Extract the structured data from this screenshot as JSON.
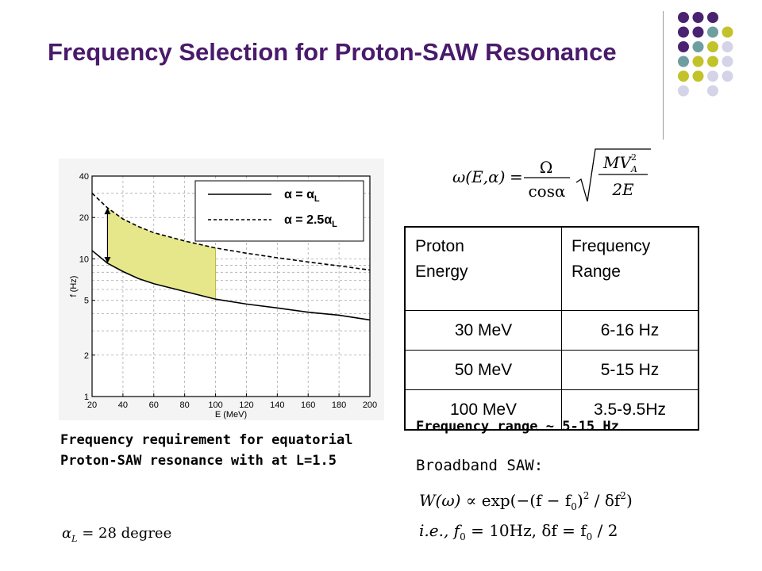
{
  "title": "Frequency Selection for Proton-SAW Resonance",
  "decoration": {
    "dot_colors": [
      "#4a2370",
      "#6f9ea0",
      "#c2c22a",
      "#d5d3e8"
    ],
    "dot_pattern": [
      [
        0,
        0,
        0,
        null
      ],
      [
        0,
        0,
        1,
        2
      ],
      [
        0,
        1,
        2,
        3
      ],
      [
        1,
        2,
        2,
        3
      ],
      [
        2,
        2,
        3,
        3
      ],
      [
        3,
        null,
        3,
        null
      ]
    ]
  },
  "chart_data": {
    "type": "line",
    "xlabel": "E (MeV)",
    "ylabel": "f (Hz)",
    "x_ticks": [
      20,
      40,
      60,
      80,
      100,
      120,
      140,
      160,
      180,
      200
    ],
    "y_ticks": [
      1,
      2,
      5,
      10,
      20,
      40
    ],
    "y_tick_labels": [
      "1",
      "2",
      "5",
      "10",
      "20",
      "40"
    ],
    "xlim": [
      20,
      200
    ],
    "ylim": [
      1,
      40
    ],
    "y_scale": "log",
    "grid": true,
    "legend_position": "top-right",
    "series": [
      {
        "name": "α = α",
        "subscript": "L",
        "style": "solid",
        "color": "#000000",
        "x": [
          20,
          30,
          40,
          50,
          60,
          80,
          100,
          120,
          140,
          160,
          180,
          200
        ],
        "y": [
          11.5,
          9.3,
          8.1,
          7.2,
          6.6,
          5.8,
          5.1,
          4.7,
          4.4,
          4.1,
          3.9,
          3.6
        ]
      },
      {
        "name": "α = 2.5α",
        "subscript": "L",
        "style": "dashed",
        "color": "#000000",
        "x": [
          20,
          30,
          40,
          50,
          60,
          80,
          100,
          120,
          140,
          160,
          180,
          200
        ],
        "y": [
          30,
          23.5,
          19.5,
          17.2,
          15.5,
          13.5,
          12,
          11,
          10.2,
          9.5,
          8.9,
          8.3
        ]
      }
    ],
    "shaded_band": {
      "x_range": [
        30,
        100
      ],
      "color": "#e6e68a"
    },
    "arrow": {
      "x": 30,
      "y_from": 9.3,
      "y_to": 23.5
    }
  },
  "formula": {
    "lhs": "ω(E,α)",
    "numerator": "Ω",
    "denominator": "cosα",
    "root_numerator": "MV",
    "root_subscript": "A",
    "root_superscript": "2",
    "root_denominator": "2E"
  },
  "table": {
    "headers": [
      [
        "Proton",
        "Energy"
      ],
      [
        "Frequency",
        "Range"
      ]
    ],
    "rows": [
      [
        "30 MeV",
        "6-16 Hz"
      ],
      [
        "50 MeV",
        "5-15 Hz"
      ],
      [
        "100 MeV",
        "3.5-9.5Hz"
      ]
    ]
  },
  "caption": "Frequency requirement for equatorial Proton-SAW resonance with at L=1.5",
  "frequency_range_text": "Frequency range ~ 5-15 Hz",
  "broadband_label": "Broadband SAW:",
  "equations": {
    "w_fn": "W(ω)",
    "w_rest": "∝ exp(−(f − f",
    "w_tail": ")",
    "w_sq": "2",
    "w_div": " / δf",
    "w_close": ")",
    "ie_prefix": "i.e.,",
    "ie_f0": "f",
    "ie_eq": " = 10Hz, δf = f",
    "ie_end": " / 2",
    "zero": "0",
    "alpha_lhs": "α",
    "alpha_sub": "L",
    "alpha_rhs": " = 28 degree"
  }
}
